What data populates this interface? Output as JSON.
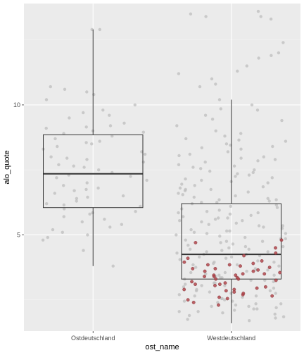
{
  "chart_data": {
    "type": "boxplot",
    "xlabel": "ost_name",
    "ylabel": "alo_quote",
    "categories": [
      "Ostdeutschland",
      "Westdeutschland"
    ],
    "ylim": [
      1.3,
      13.9
    ],
    "yticks": [
      5,
      10
    ],
    "grid": true,
    "legend": "none",
    "colors": {
      "panel": "#ebebeb",
      "grid_major": "#ffffff",
      "grid_minor": "#f4f4f4",
      "box_line": "#333333",
      "point_gray": "#bdbdbd",
      "point_red": "#b2474c"
    },
    "boxes": [
      {
        "category": "Ostdeutschland",
        "whisker_low": 3.8,
        "q1": 6.05,
        "median": 7.35,
        "q3": 8.85,
        "whisker_high": 12.9
      },
      {
        "category": "Westdeutschland",
        "whisker_low": 1.6,
        "q1": 3.3,
        "median": 4.25,
        "q3": 6.2,
        "whisker_high": 10.2
      }
    ],
    "highlight_points": [
      {
        "category": "Westdeutschland",
        "values": [
          4.7,
          4.5,
          4.2,
          4.0,
          3.9,
          3.85,
          3.8,
          3.7,
          3.6,
          3.55,
          3.5,
          3.45,
          3.4,
          3.35,
          3.3,
          3.2,
          3.1,
          3.0,
          2.95,
          2.9,
          2.8,
          2.7,
          2.6,
          2.5,
          2.4,
          2.3,
          4.3,
          3.65,
          3.25,
          2.85,
          3.75,
          3.15,
          4.1,
          2.65,
          3.05,
          3.6,
          3.4,
          2.9,
          3.3,
          3.7,
          4.8,
          3.5,
          2.75,
          3.45,
          3.95,
          2.55,
          3.1,
          3.85
        ]
      }
    ],
    "jitter_points": [
      {
        "category": "Ostdeutschland",
        "values": [
          12.9,
          12.9,
          10.7,
          10.6,
          10.5,
          10.4,
          10.2,
          10.0,
          9.8,
          9.7,
          9.5,
          9.3,
          9.2,
          9.1,
          9.0,
          8.9,
          8.8,
          8.7,
          8.6,
          8.5,
          8.4,
          8.3,
          8.2,
          8.1,
          8.0,
          7.9,
          7.8,
          7.7,
          7.6,
          7.5,
          7.4,
          7.3,
          7.2,
          7.1,
          7.0,
          6.9,
          6.8,
          6.7,
          6.6,
          6.5,
          6.4,
          6.3,
          6.2,
          6.1,
          6.0,
          5.9,
          5.8,
          5.7,
          5.6,
          5.5,
          5.4,
          5.3,
          5.2,
          5.1,
          5.0,
          4.9,
          4.8,
          4.4,
          3.8,
          9.6,
          8.95,
          7.65,
          6.75,
          5.85,
          8.55,
          7.25,
          6.45,
          9.15,
          7.95,
          6.15
        ]
      },
      {
        "category": "Westdeutschland",
        "values": [
          13.6,
          13.5,
          13.4,
          13.4,
          13.3,
          12.4,
          12.0,
          11.9,
          11.8,
          11.5,
          11.3,
          11.2,
          11.0,
          10.8,
          10.7,
          10.2,
          10.0,
          9.8,
          9.6,
          9.4,
          9.2,
          9.0,
          8.9,
          8.8,
          8.7,
          8.6,
          8.5,
          8.4,
          8.3,
          8.2,
          8.1,
          8.0,
          7.9,
          7.8,
          7.7,
          7.6,
          7.5,
          7.4,
          7.3,
          7.2,
          7.1,
          7.0,
          6.9,
          6.8,
          6.7,
          6.6,
          6.5,
          6.4,
          6.3,
          6.2,
          6.1,
          6.0,
          5.9,
          5.8,
          5.7,
          5.6,
          5.5,
          5.4,
          5.3,
          5.2,
          5.1,
          5.0,
          4.9,
          4.8,
          4.7,
          4.6,
          4.5,
          4.4,
          4.3,
          4.2,
          4.1,
          4.0,
          3.9,
          3.8,
          3.7,
          3.6,
          3.5,
          3.4,
          3.3,
          3.2,
          3.1,
          3.0,
          2.9,
          2.8,
          2.7,
          2.6,
          2.5,
          2.4,
          2.3,
          2.2,
          2.1,
          2.0,
          1.9,
          1.8,
          1.7,
          7.05,
          6.35,
          5.75,
          5.15,
          4.55,
          3.95,
          3.35,
          2.75,
          2.15,
          6.85,
          6.05,
          5.45,
          4.85,
          4.25,
          3.65,
          3.05,
          2.45,
          1.85,
          7.35,
          6.65,
          5.95,
          5.35,
          4.75,
          4.15,
          3.55,
          2.95,
          2.35,
          6.95,
          6.25,
          5.65,
          5.05,
          4.45,
          3.85,
          3.25,
          2.65,
          2.05,
          7.65,
          6.75,
          5.85,
          5.25,
          4.65,
          4.05,
          3.45,
          2.85,
          2.25,
          8.35,
          7.85,
          7.45,
          6.15,
          5.55,
          4.95,
          4.35,
          3.75,
          3.15,
          2.55,
          1.95,
          8.65,
          7.15,
          6.45,
          5.15,
          4.25,
          3.35,
          2.45,
          9.45,
          8.05,
          6.55,
          5.85,
          4.75,
          3.85,
          2.75,
          1.75,
          9.85,
          7.55,
          6.35,
          5.55,
          4.45,
          3.65,
          2.85,
          2.05,
          7.25,
          5.05,
          3.95,
          3.05,
          2.15,
          8.45,
          6.25,
          4.55,
          3.45,
          2.35,
          5.65,
          4.85,
          3.25,
          2.55,
          6.75,
          4.15,
          3.55,
          2.65,
          7.95,
          5.35,
          4.35,
          3.15,
          2.25
        ]
      }
    ]
  }
}
